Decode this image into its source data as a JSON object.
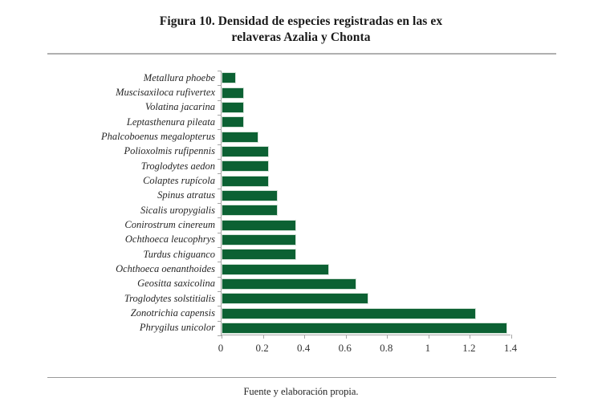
{
  "title": {
    "line1": "Figura 10. Densidad de especies registradas en las ex",
    "line2": "relaveras Azalia y Chonta"
  },
  "footer": "Fuente y elaboración propia.",
  "colors": {
    "bar_fill": "#0c6133",
    "bar_border": "#d2e2d7",
    "axis": "#a6a6a6",
    "text": "#262626"
  },
  "chart_data": {
    "type": "bar",
    "orientation": "horizontal",
    "title": "Figura 10. Densidad de especies registradas en las ex relaveras Azalia y Chonta",
    "xlabel": "",
    "ylabel": "",
    "xlim": [
      0,
      1.4
    ],
    "grid": false,
    "legend": false,
    "xticks": [
      {
        "value": 0,
        "label": "0"
      },
      {
        "value": 0.2,
        "label": "0.2"
      },
      {
        "value": 0.4,
        "label": "0.4"
      },
      {
        "value": 0.6,
        "label": "0.6"
      },
      {
        "value": 0.8,
        "label": "0.8"
      },
      {
        "value": 1,
        "label": "1"
      },
      {
        "value": 1.2,
        "label": "1.2"
      },
      {
        "value": 1.4,
        "label": "1.4"
      }
    ],
    "categories": [
      "Metallura phoebe",
      "Muscisaxiloca rufivertex",
      "Volatina jacarina",
      "Leptasthenura pileata",
      "Phalcoboenus megalopterus",
      "Polioxolmis rufipennis",
      "Troglodytes aedon",
      "Colaptes rupícola",
      "Spinus atratus",
      "Sicalis uropygialis",
      "Conirostrum cinereum",
      "Ochthoeca leucophrys",
      "Turdus chiguanco",
      "Ochthoeca oenanthoides",
      "Geositta saxicolina",
      "Troglodytes solstitialis",
      "Zonotrichia capensis",
      "Phrygilus unicolor"
    ],
    "values": [
      0.07,
      0.11,
      0.11,
      0.11,
      0.18,
      0.23,
      0.23,
      0.23,
      0.27,
      0.27,
      0.36,
      0.36,
      0.36,
      0.52,
      0.65,
      0.71,
      1.23,
      1.38
    ]
  }
}
